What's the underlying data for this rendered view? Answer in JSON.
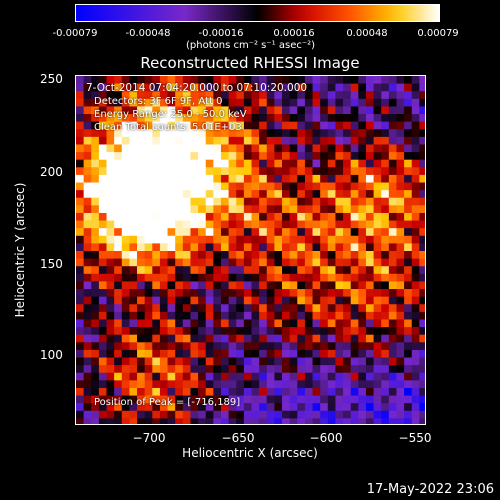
{
  "colorbar": {
    "ticks": [
      "-0.00079",
      "-0.00048",
      "-0.00016",
      "0.00016",
      "0.00048",
      "0.00079"
    ],
    "units": "(photons cm⁻² s⁻¹ asec⁻²)"
  },
  "annotations": {
    "time_range": "7-Oct-2014 07:04:20.000 to 07:10:20.000",
    "detectors": "Detectors: 3F 6F 9F, Att 0",
    "energy": "Energy Range: 25.0 - 50.0 keV",
    "clean": "Clean    Total counts: 5.01E+03",
    "peak": "Position of Peak = [-716,189]"
  },
  "footer": {
    "timestamp": "17-May-2022 23:06"
  },
  "chart_data": {
    "type": "heatmap",
    "title": "Reconstructed RHESSI Image",
    "xlabel": "Heliocentric X (arcsec)",
    "ylabel": "Heliocentric Y (arcsec)",
    "xlim": [
      -745,
      -547
    ],
    "ylim": [
      59,
      256
    ],
    "xticks": [
      -700,
      -650,
      -600,
      -550
    ],
    "yticks": [
      100,
      150,
      200,
      250
    ],
    "xtick_labels": [
      "−700",
      "−650",
      "−600",
      "−550"
    ],
    "ytick_labels": [
      "100",
      "150",
      "200",
      "250"
    ],
    "colorbar_range": [
      -0.00079,
      0.00079
    ],
    "peak_position": [
      -716,
      189
    ],
    "sources": [
      {
        "x": -712,
        "y": 194,
        "value": 0.00079
      },
      {
        "x": -703,
        "y": 178,
        "value": 0.0006
      },
      {
        "x": -690,
        "y": 225,
        "value": 0.0005
      },
      {
        "x": -570,
        "y": 185,
        "value": 0.0007
      },
      {
        "x": -565,
        "y": 125,
        "value": 0.0005
      },
      {
        "x": -700,
        "y": 85,
        "value": 0.0006
      },
      {
        "x": -625,
        "y": 165,
        "value": 0.0004
      },
      {
        "x": -660,
        "y": 205,
        "value": 0.00035
      },
      {
        "x": -615,
        "y": 120,
        "value": 0.0003
      }
    ],
    "grid": false
  }
}
